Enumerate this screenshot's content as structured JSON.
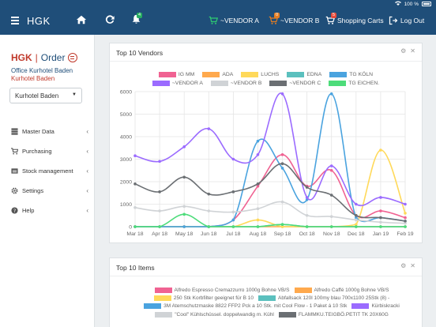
{
  "status": {
    "battery_text": "100 %"
  },
  "nav": {
    "brand": "HGK",
    "notification_count": "4",
    "cart_a_label": "~VENDOR A",
    "cart_b_label": "~VENDOR B",
    "cart_b_badge": "0",
    "shopping_carts_label": "Shopping Carts",
    "shopping_carts_badge": "5",
    "logout_label": "Log Out"
  },
  "sidebar": {
    "logo_hgk": "HGK",
    "logo_order": "Order",
    "office": "Office Kurhotel Baden",
    "hotel": "Kurhotel Baden",
    "select_value": "Kurhotel Baden",
    "items": [
      {
        "label": "Master Data",
        "icon": "database-icon"
      },
      {
        "label": "Purchasing",
        "icon": "cart-icon"
      },
      {
        "label": "Stock management",
        "icon": "warehouse-icon"
      },
      {
        "label": "Settings",
        "icon": "gear-icon"
      },
      {
        "label": "Help",
        "icon": "question-icon"
      }
    ]
  },
  "panel_vendors": {
    "title": "Top 10 Vendors"
  },
  "panel_items": {
    "title": "Top 10 Items",
    "legend": [
      {
        "label": "Alfredo Espresso Cremazzurro 1000g Bohne VB/S",
        "color": "#f06292"
      },
      {
        "label": "Alfredo Caffé 1000g Bohne VB/S",
        "color": "#ffa94d"
      },
      {
        "label": "250 Stk Korbfilter geeignet für B 10",
        "color": "#ffd95a"
      },
      {
        "label": "Abfallsack 120l 100my blau 700x1100 25Stk (8) -",
        "color": "#5bc0be"
      },
      {
        "label": "3M Atemschutzmaske 8822 FFP2 Pck a 10 Stk. mit Cool Flow - 1 Paket á 10 Stk",
        "color": "#4aa3df"
      },
      {
        "label": "Kürbiskracki",
        "color": "#9b6bff"
      },
      {
        "label": "\"Cool\" Kühlschüssel. doppelwandig m. Kühl",
        "color": "#d0d3d6"
      },
      {
        "label": "FLAMMKU.TEIGBÖ.PETIT TK 20X60G",
        "color": "#6b6f73"
      }
    ]
  },
  "chart_data": {
    "type": "line",
    "title": "Top 10 Vendors",
    "categories": [
      "Mar 18",
      "Apr 18",
      "May 18",
      "Jun 18",
      "Jul 18",
      "Aug 18",
      "Sep 18",
      "Oct 18",
      "Nov 18",
      "Dec 18",
      "Jan 19",
      "Feb 19"
    ],
    "ylim": [
      0,
      6000
    ],
    "yticks": [
      0,
      1000,
      2000,
      3000,
      4000,
      5000,
      6000
    ],
    "grid": true,
    "legend_position": "top",
    "series": [
      {
        "name": "IG MM",
        "color": "#f06292",
        "values": [
          0,
          0,
          0,
          0,
          300,
          1800,
          3200,
          1800,
          2500,
          500,
          700,
          400
        ]
      },
      {
        "name": "ADA",
        "color": "#ffa94d",
        "values": [
          0,
          0,
          0,
          0,
          0,
          0,
          0,
          0,
          0,
          0,
          0,
          0
        ]
      },
      {
        "name": "LUCHS",
        "color": "#ffd95a",
        "values": [
          0,
          0,
          0,
          0,
          0,
          300,
          0,
          0,
          0,
          100,
          3400,
          600
        ]
      },
      {
        "name": "EDNA",
        "color": "#5bc0be",
        "values": [
          0,
          0,
          0,
          0,
          0,
          0,
          100,
          0,
          0,
          0,
          0,
          0
        ]
      },
      {
        "name": "TG KÖLN",
        "color": "#4aa3df",
        "values": [
          0,
          0,
          0,
          0,
          300,
          3800,
          2600,
          1200,
          5900,
          400,
          400,
          250
        ]
      },
      {
        "name": "~VENDOR A",
        "color": "#9b6bff",
        "values": [
          3150,
          2900,
          3550,
          4350,
          3000,
          3200,
          5900,
          1300,
          2700,
          1000,
          1300,
          1000
        ]
      },
      {
        "name": "~VENDOR B",
        "color": "#d0d3d6",
        "values": [
          850,
          700,
          900,
          700,
          650,
          800,
          1100,
          500,
          450,
          300,
          200,
          150
        ]
      },
      {
        "name": "~VENDOR C",
        "color": "#6b6f73",
        "values": [
          1900,
          1550,
          2200,
          1450,
          1550,
          1900,
          2800,
          1750,
          1400,
          500,
          400,
          250
        ]
      },
      {
        "name": "TG EICHEN.",
        "color": "#4ddc7a",
        "values": [
          0,
          0,
          550,
          0,
          0,
          0,
          100,
          0,
          0,
          0,
          0,
          0
        ]
      }
    ]
  }
}
